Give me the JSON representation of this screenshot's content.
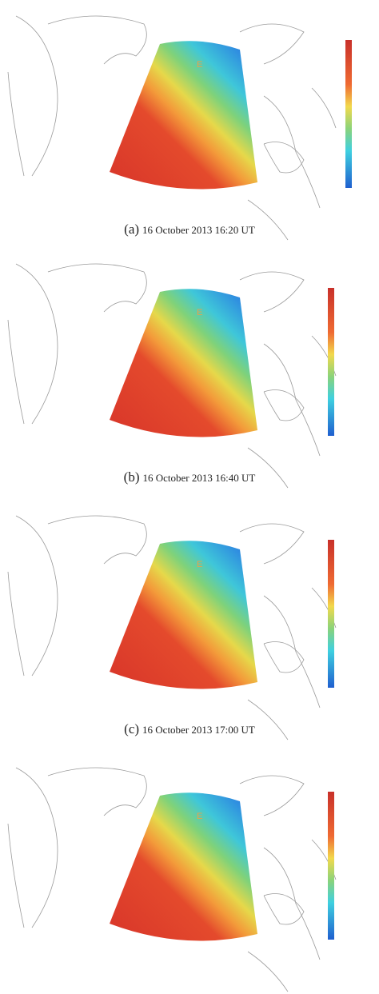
{
  "panels": [
    {
      "label": "(a)",
      "caption": "16 October 2013 16:20 UT",
      "marker": "E"
    },
    {
      "label": "(b)",
      "caption": "16 October 2013 16:40 UT",
      "marker": "E"
    },
    {
      "label": "(c)",
      "caption": "16 October 2013 17:00 UT",
      "marker": "E"
    },
    {
      "marker": "E"
    }
  ]
}
